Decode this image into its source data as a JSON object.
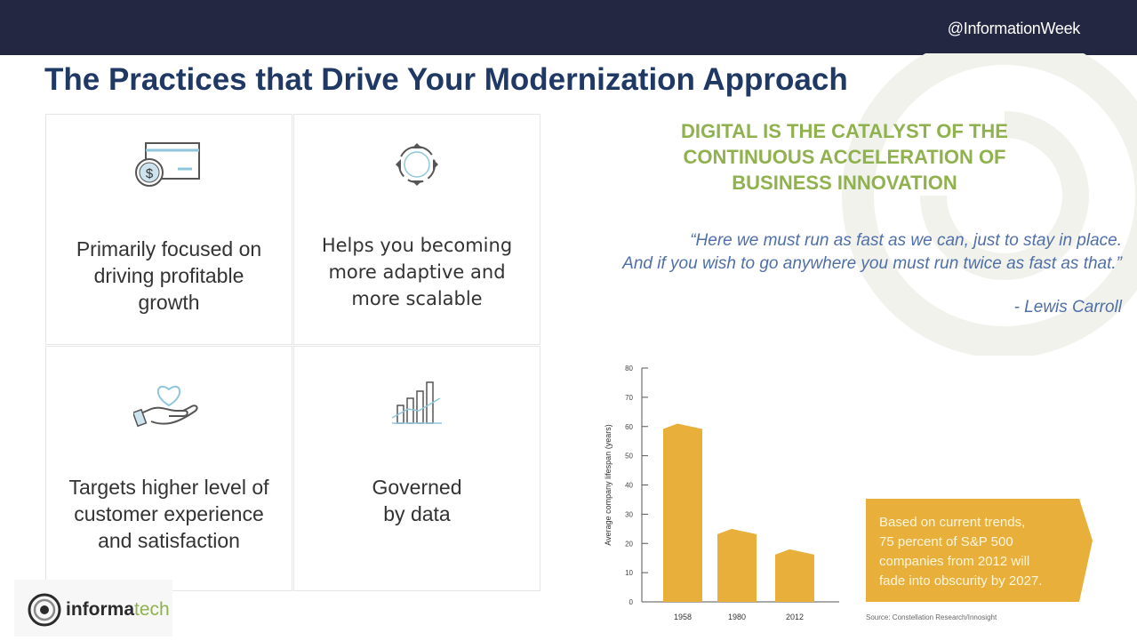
{
  "header": {
    "handle": "@InformationWeek"
  },
  "title": "The Practices that Drive Your Modernization Approach",
  "practices": [
    {
      "icon": "money-card-icon",
      "lines": [
        "Primarily focused on",
        "driving profitable",
        "growth"
      ]
    },
    {
      "icon": "cycle-arrows-icon",
      "lines": [
        "Helps you becoming",
        "more adaptive and",
        "more scalable"
      ]
    },
    {
      "icon": "heart-hand-icon",
      "lines": [
        "Targets higher level of",
        "customer experience",
        "and satisfaction"
      ]
    },
    {
      "icon": "bar-growth-icon",
      "lines": [
        "Governed",
        "by data"
      ]
    }
  ],
  "headline": {
    "lines": [
      "DIGITAL IS THE CATALYST OF THE",
      "CONTINUOUS ACCELERATION OF",
      "BUSINESS INNOVATION"
    ]
  },
  "quote": {
    "line1": "“Here we must run as fast as we can, just to stay in place.",
    "line2": "And if you wish to go anywhere you must run twice as fast as that.”",
    "author": "- Lewis Carroll"
  },
  "chart_data": {
    "type": "bar",
    "categories": [
      "1958",
      "1980",
      "2012"
    ],
    "values": [
      61,
      25,
      18
    ],
    "ylabel": "Average company lifespan (years)",
    "ylim": [
      0,
      80
    ],
    "yticks": [
      0,
      10,
      20,
      30,
      40,
      50,
      60,
      70,
      80
    ],
    "bar_color": "#e8b03a",
    "grid": false,
    "callout": {
      "lines": [
        "Based on current trends,",
        "75 percent of S&P 500",
        "companies from 2012 will",
        "fade into obscurity by 2027."
      ]
    },
    "source": "Source: Constellation Research/Innosight"
  },
  "logo": {
    "text_main": "informa",
    "text_accent": "tech"
  },
  "colors": {
    "topbar": "#242741",
    "title": "#1f3864",
    "headline": "#8fb24e",
    "quote": "#4f6fa8",
    "bar": "#e8b03a"
  }
}
